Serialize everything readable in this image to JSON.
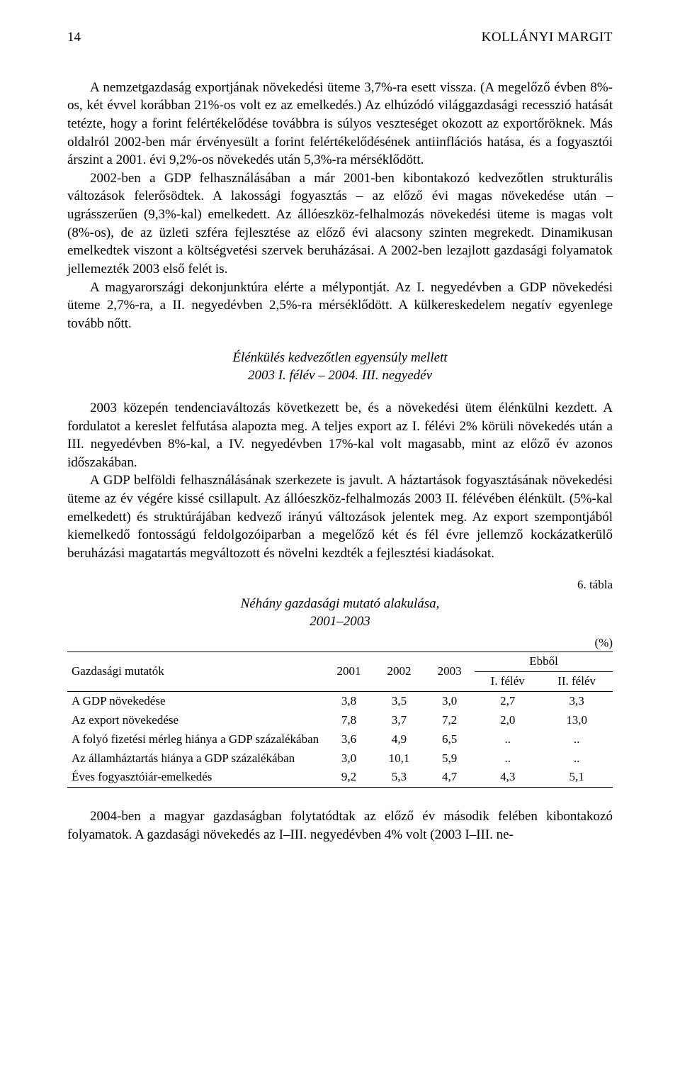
{
  "header": {
    "page_number": "14",
    "author": "KOLLÁNYI MARGIT"
  },
  "paragraphs": {
    "p1": "A nemzetgazdaság exportjának növekedési üteme 3,7%-ra esett vissza. (A megelőző évben 8%-os, két évvel korábban 21%-os volt ez az emelkedés.) Az elhúzódó világgazdasági recesszió hatását tetézte, hogy a forint felértékelődése továbbra is súlyos veszteséget okozott az exportőröknek. Más oldalról 2002-ben már érvényesült a forint felértékelődésének antiinflációs hatása, és a fogyasztói árszint a 2001. évi 9,2%-os növekedés után 5,3%-ra mérséklődött.",
    "p2": "2002-ben a GDP felhasználásában a már 2001-ben kibontakozó kedvezőtlen strukturális változások felerősödtek. A lakossági fogyasztás – az előző évi magas növekedése után – ugrásszerűen (9,3%-kal) emelkedett. Az állóeszköz-felhalmozás növekedési üteme is magas volt (8%-os), de az üzleti szféra fejlesztése az előző évi alacsony szinten megrekedt. Dinamikusan emelkedtek viszont a költségvetési szervek beruházásai. A 2002-ben lezajlott gazdasági folyamatok jellemezték 2003 első felét is.",
    "p3": "A magyarországi dekonjunktúra elérte a mélypontját. Az I. negyedévben a GDP növekedési üteme 2,7%-ra, a II. negyedévben 2,5%-ra mérséklődött. A külkereskedelem negatív egyenlege tovább nőtt.",
    "section_title": "Élénkülés kedvezőtlen egyensúly mellett",
    "section_subtitle": "2003 I. félév – 2004. III. negyedév",
    "p4": "2003 közepén tendenciaváltozás következett be, és a növekedési ütem élénkülni kezdett. A fordulatot a kereslet felfutása alapozta meg. A teljes export az I. félévi 2% körüli növekedés után a III. negyedévben 8%-kal, a IV. negyedévben 17%-kal volt magasabb, mint az előző év azonos időszakában.",
    "p5": "A GDP belföldi felhasználásának szerkezete is javult. A háztartások fogyasztásának növekedési üteme az év végére kissé csillapult. Az állóeszköz-felhalmozás 2003 II. félévében élénkült. (5%-kal emelkedett) és struktúrájában kedvező irányú változások jelentek meg. Az export szempontjából kiemelkedő fontosságú feldolgozóiparban a megelőző két és fél évre jellemző kockázatkerülő beruházási magatartás megváltozott és növelni kezdték a fejlesztési kiadásokat.",
    "p6": "2004-ben a magyar gazdaságban folytatódtak az előző év második felében kibontakozó folyamatok. A gazdasági növekedés az I–III. negyedévben 4% volt (2003 I–III. ne-"
  },
  "table": {
    "label": "6. tábla",
    "title": "Néhány gazdasági mutató alakulása,",
    "years": "2001–2003",
    "unit": "(%)",
    "columns": {
      "indicator": "Gazdasági mutatók",
      "y2001": "2001",
      "y2002": "2002",
      "y2003": "2003",
      "ebbol": "Ebből",
      "half1": "I. félév",
      "half2": "II. félév"
    },
    "rows": [
      {
        "name": "A GDP növekedése",
        "c1": "3,8",
        "c2": "3,5",
        "c3": "3,0",
        "c4": "2,7",
        "c5": "3,3"
      },
      {
        "name": "Az export növekedése",
        "c1": "7,8",
        "c2": "3,7",
        "c3": "7,2",
        "c4": "2,0",
        "c5": "13,0"
      },
      {
        "name": "A folyó fizetési mérleg hiánya a GDP százalékában",
        "c1": "3,6",
        "c2": "4,9",
        "c3": "6,5",
        "c4": "..",
        "c5": ".."
      },
      {
        "name": "Az államháztartás hiánya a GDP százalékában",
        "c1": "3,0",
        "c2": "10,1",
        "c3": "5,9",
        "c4": "..",
        "c5": ".."
      },
      {
        "name": "Éves fogyasztóiár-emelkedés",
        "c1": "9,2",
        "c2": "5,3",
        "c3": "4,7",
        "c4": "4,3",
        "c5": "5,1"
      }
    ]
  }
}
